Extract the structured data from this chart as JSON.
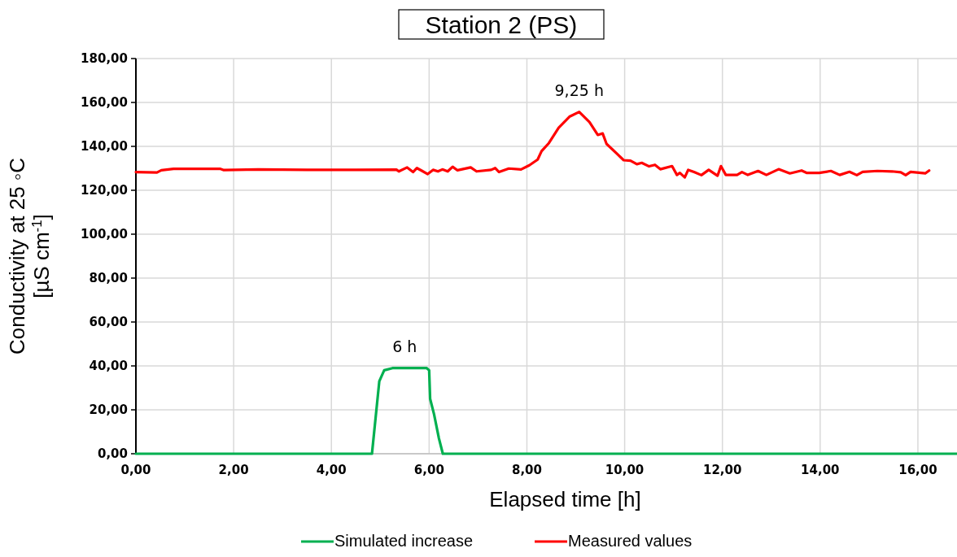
{
  "chart_data": {
    "type": "line",
    "title": "Station 2 (PS)",
    "xlabel": "Elapsed time [h]",
    "ylabel": "Conductivity at 25 ◦C [µS cm$^{-1}$]",
    "xlim": [
      0,
      16.8
    ],
    "xticks": [
      {
        "value": 0,
        "label": "0,00"
      },
      {
        "value": 2,
        "label": "2,00"
      },
      {
        "value": 4,
        "label": "4,00"
      },
      {
        "value": 6,
        "label": "6,00"
      },
      {
        "value": 8,
        "label": "8,00"
      },
      {
        "value": 10,
        "label": "10,00"
      },
      {
        "value": 12,
        "label": "12,00"
      },
      {
        "value": 14,
        "label": "14,00"
      },
      {
        "value": 16,
        "label": "16,00"
      }
    ],
    "ylim": [
      0,
      180
    ],
    "yticks": [
      {
        "value": 0,
        "label": "0,00"
      },
      {
        "value": 20,
        "label": "20,00"
      },
      {
        "value": 40,
        "label": "40,00"
      },
      {
        "value": 60,
        "label": "60,00"
      },
      {
        "value": 80,
        "label": "80,00"
      },
      {
        "value": 100,
        "label": "100,00"
      },
      {
        "value": 120,
        "label": "120,00"
      },
      {
        "value": 140,
        "label": "140,00"
      },
      {
        "value": 160,
        "label": "160,00"
      },
      {
        "value": 180,
        "label": "180,00"
      }
    ],
    "grid": true,
    "legend": "bottom",
    "marker": "none",
    "annotations": [
      {
        "text": "6 h",
        "x": 5.5,
        "y": 39
      },
      {
        "text": "9,25 h",
        "x": 9.07,
        "y": 155.7
      }
    ],
    "series": [
      {
        "name": "Simulated increase",
        "color": "#00b050",
        "x": [
          0,
          4.83,
          4.98,
          5.08,
          5.25,
          5.95,
          6.0,
          6.02,
          6.1,
          6.2,
          6.28,
          16.8
        ],
        "values": [
          0,
          0,
          33,
          38,
          39,
          39,
          38,
          25,
          18,
          7,
          0,
          0
        ]
      },
      {
        "name": "Measured values",
        "color": "#ff0000",
        "x": [
          0,
          0.43,
          0.52,
          0.77,
          1.72,
          1.8,
          2.5,
          3.5,
          4.5,
          5.33,
          5.38,
          5.55,
          5.67,
          5.75,
          5.85,
          5.97,
          6.08,
          6.18,
          6.27,
          6.38,
          6.48,
          6.58,
          6.85,
          6.97,
          7.27,
          7.35,
          7.43,
          7.63,
          7.88,
          8.05,
          8.22,
          8.3,
          8.45,
          8.65,
          8.87,
          9.07,
          9.28,
          9.45,
          9.55,
          9.63,
          9.84,
          9.98,
          10.12,
          10.25,
          10.35,
          10.5,
          10.62,
          10.73,
          10.97,
          11.07,
          11.13,
          11.23,
          11.3,
          11.42,
          11.57,
          11.72,
          11.9,
          11.97,
          12.07,
          12.3,
          12.4,
          12.52,
          12.73,
          12.9,
          13.15,
          13.38,
          13.62,
          13.73,
          13.98,
          14.22,
          14.4,
          14.6,
          14.75,
          14.87,
          15.17,
          15.47,
          15.65,
          15.75,
          15.85,
          16.15,
          16.23
        ],
        "values": [
          128.3,
          128.1,
          129.1,
          129.8,
          129.8,
          129.2,
          129.5,
          129.3,
          129.3,
          129.4,
          128.6,
          130.4,
          128.3,
          130.1,
          128.9,
          127.4,
          129.3,
          128.6,
          129.5,
          128.6,
          130.7,
          129.1,
          130.4,
          128.6,
          129.3,
          130.1,
          128.3,
          129.9,
          129.5,
          131.4,
          134,
          137.8,
          141.5,
          148.5,
          153.5,
          155.7,
          151.1,
          145.2,
          145.9,
          141.1,
          136.7,
          133.7,
          133.5,
          131.9,
          132.5,
          130.9,
          131.6,
          129.6,
          131,
          127,
          127.9,
          125.9,
          129.3,
          128.3,
          126.9,
          129.3,
          126.6,
          131,
          127,
          127,
          128.3,
          127,
          128.8,
          127,
          129.6,
          127.7,
          129,
          127.9,
          127.9,
          128.8,
          127,
          128.4,
          126.9,
          128.4,
          128.8,
          128.6,
          128.2,
          126.9,
          128.4,
          127.7,
          129
        ]
      }
    ]
  }
}
